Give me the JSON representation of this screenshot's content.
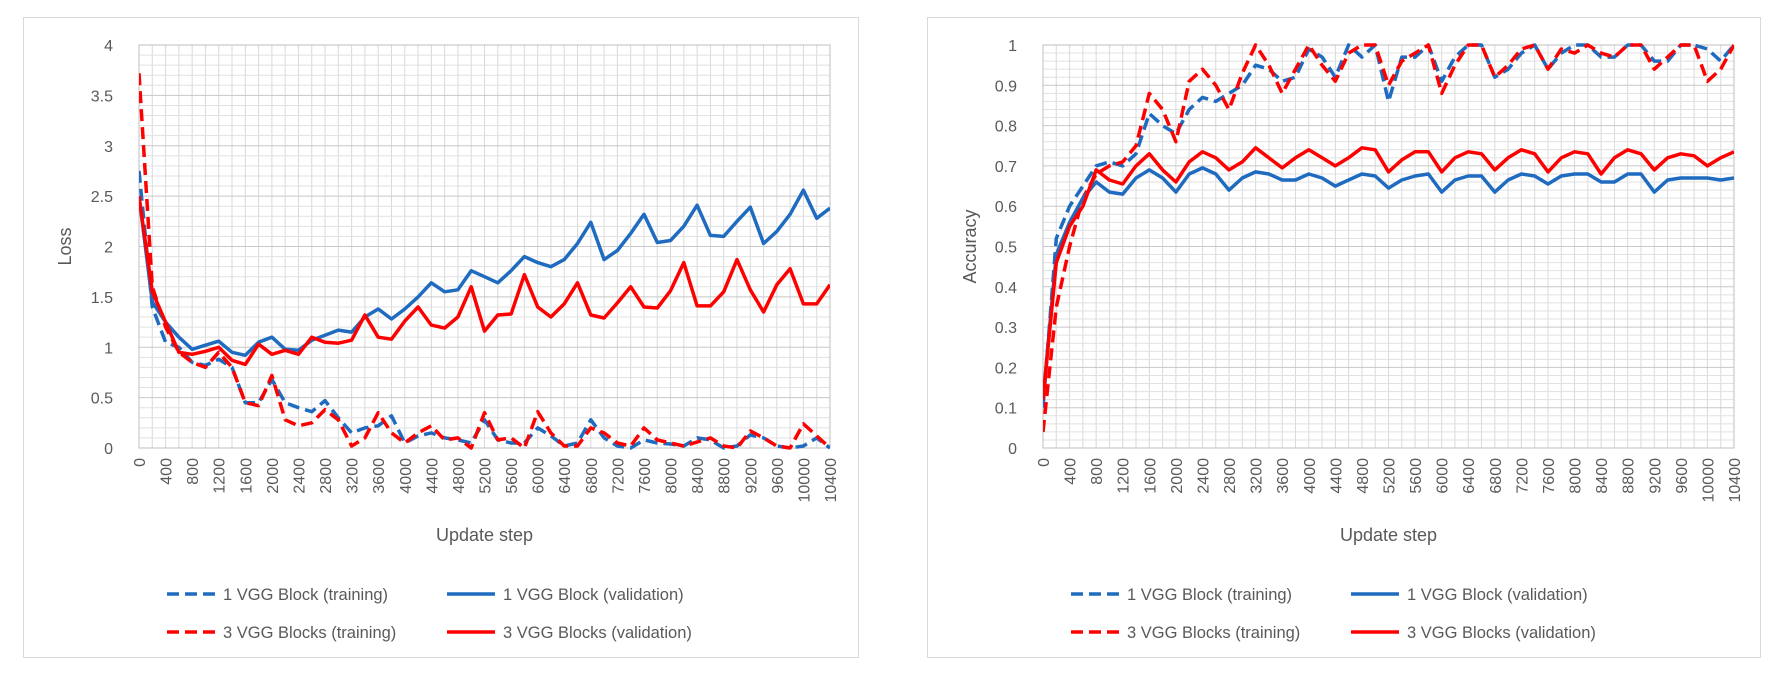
{
  "chart_data": [
    {
      "type": "line",
      "xlabel": "Update step",
      "ylabel": "Loss",
      "xticks": [
        0,
        400,
        800,
        1200,
        1600,
        2000,
        2400,
        2800,
        3200,
        3600,
        4000,
        4400,
        4800,
        5200,
        5600,
        6000,
        6400,
        6800,
        7200,
        7600,
        8000,
        8400,
        8800,
        9200,
        9600,
        10000,
        10400
      ],
      "yticks": [
        "0",
        "0.5",
        "1",
        "1.5",
        "2",
        "2.5",
        "3",
        "3.5",
        "4"
      ],
      "ylim": [
        0,
        4
      ],
      "xlim": [
        0,
        10400
      ],
      "grid": true,
      "legend_position": "bottom",
      "x": [
        0,
        200,
        400,
        600,
        800,
        1000,
        1200,
        1400,
        1600,
        1800,
        2000,
        2200,
        2400,
        2600,
        2800,
        3000,
        3200,
        3400,
        3600,
        3800,
        4000,
        4200,
        4400,
        4600,
        4800,
        5000,
        5200,
        5400,
        5600,
        5800,
        6000,
        6200,
        6400,
        6600,
        6800,
        7000,
        7200,
        7400,
        7600,
        7800,
        8000,
        8200,
        8400,
        8600,
        8800,
        9000,
        9200,
        9400,
        9600,
        9800,
        10000,
        10200,
        10400
      ],
      "series": [
        {
          "name": "1 VGG Block (training)",
          "color": "#1f6bbf",
          "dash": true,
          "values": [
            2.75,
            1.4,
            1.05,
            1.0,
            0.85,
            0.82,
            0.88,
            0.8,
            0.45,
            0.45,
            0.68,
            0.45,
            0.4,
            0.36,
            0.47,
            0.3,
            0.15,
            0.2,
            0.22,
            0.32,
            0.05,
            0.12,
            0.15,
            0.1,
            0.08,
            0.05,
            0.28,
            0.08,
            0.05,
            0.05,
            0.2,
            0.12,
            0.02,
            0.05,
            0.28,
            0.1,
            0.02,
            0.0,
            0.08,
            0.05,
            0.04,
            0.02,
            0.1,
            0.08,
            0.0,
            0.02,
            0.13,
            0.1,
            0.02,
            0.0,
            0.02,
            0.1,
            0.0
          ]
        },
        {
          "name": "1 VGG Block (validation)",
          "color": "#1f6bbf",
          "dash": false,
          "values": [
            2.5,
            1.45,
            1.25,
            1.1,
            0.98,
            1.02,
            1.06,
            0.95,
            0.92,
            1.05,
            1.1,
            0.98,
            0.97,
            1.07,
            1.12,
            1.17,
            1.15,
            1.3,
            1.38,
            1.28,
            1.38,
            1.5,
            1.64,
            1.55,
            1.57,
            1.76,
            1.7,
            1.64,
            1.76,
            1.9,
            1.84,
            1.8,
            1.87,
            2.03,
            2.24,
            1.87,
            1.96,
            2.13,
            2.32,
            2.04,
            2.06,
            2.2,
            2.41,
            2.11,
            2.1,
            2.25,
            2.39,
            2.03,
            2.15,
            2.32,
            2.56,
            2.28,
            2.38
          ]
        },
        {
          "name": "3 VGG Blocks (training)",
          "color": "#ff0000",
          "dash": true,
          "values": [
            3.72,
            1.6,
            1.2,
            0.95,
            0.85,
            0.8,
            0.95,
            0.8,
            0.45,
            0.42,
            0.72,
            0.28,
            0.22,
            0.25,
            0.38,
            0.28,
            0.02,
            0.1,
            0.35,
            0.15,
            0.05,
            0.15,
            0.22,
            0.08,
            0.1,
            0.0,
            0.35,
            0.08,
            0.1,
            0.0,
            0.36,
            0.15,
            0.02,
            0.02,
            0.2,
            0.15,
            0.05,
            0.02,
            0.2,
            0.08,
            0.05,
            0.02,
            0.06,
            0.1,
            0.02,
            0.0,
            0.17,
            0.1,
            0.02,
            0.0,
            0.24,
            0.12,
            0.0
          ]
        },
        {
          "name": "3 VGG Blocks (validation)",
          "color": "#ff0000",
          "dash": false,
          "values": [
            2.5,
            1.55,
            1.25,
            0.95,
            0.93,
            0.96,
            1.0,
            0.87,
            0.83,
            1.03,
            0.93,
            0.97,
            0.93,
            1.1,
            1.05,
            1.04,
            1.07,
            1.32,
            1.1,
            1.08,
            1.26,
            1.4,
            1.22,
            1.19,
            1.3,
            1.6,
            1.16,
            1.32,
            1.33,
            1.72,
            1.4,
            1.3,
            1.43,
            1.64,
            1.32,
            1.29,
            1.44,
            1.6,
            1.4,
            1.39,
            1.56,
            1.84,
            1.41,
            1.41,
            1.55,
            1.87,
            1.57,
            1.35,
            1.62,
            1.78,
            1.43,
            1.43,
            1.62
          ]
        }
      ]
    },
    {
      "type": "line",
      "xlabel": "Update step",
      "ylabel": "Accuracy",
      "xticks": [
        0,
        400,
        800,
        1200,
        1600,
        2000,
        2400,
        2800,
        3200,
        3600,
        4000,
        4400,
        4800,
        5200,
        5600,
        6000,
        6400,
        6800,
        7200,
        7600,
        8000,
        8400,
        8800,
        9200,
        9600,
        10000,
        10400
      ],
      "yticks": [
        "0",
        "0.1",
        "0.2",
        "0.3",
        "0.4",
        "0.5",
        "0.6",
        "0.7",
        "0.8",
        "0.9",
        "1"
      ],
      "ylim": [
        0,
        1
      ],
      "xlim": [
        0,
        10400
      ],
      "grid": true,
      "legend_position": "bottom",
      "x": [
        0,
        200,
        400,
        600,
        800,
        1000,
        1200,
        1400,
        1600,
        1800,
        2000,
        2200,
        2400,
        2600,
        2800,
        3000,
        3200,
        3400,
        3600,
        3800,
        4000,
        4200,
        4400,
        4600,
        4800,
        5000,
        5200,
        5400,
        5600,
        5800,
        6000,
        6200,
        6400,
        6600,
        6800,
        7000,
        7200,
        7400,
        7600,
        7800,
        8000,
        8200,
        8400,
        8600,
        8800,
        9000,
        9200,
        9400,
        9600,
        9800,
        10000,
        10200,
        10400
      ],
      "series": [
        {
          "name": "1 VGG Block (training)",
          "color": "#1f6bbf",
          "dash": true,
          "values": [
            0.1,
            0.52,
            0.6,
            0.65,
            0.7,
            0.71,
            0.7,
            0.73,
            0.83,
            0.8,
            0.78,
            0.84,
            0.87,
            0.86,
            0.88,
            0.9,
            0.95,
            0.94,
            0.91,
            0.92,
            0.99,
            0.97,
            0.92,
            1.0,
            0.97,
            1.0,
            0.86,
            0.97,
            0.97,
            1.0,
            0.91,
            0.97,
            1.0,
            1.0,
            0.92,
            0.94,
            0.98,
            1.0,
            0.94,
            0.98,
            1.0,
            1.0,
            0.97,
            0.97,
            1.0,
            1.0,
            0.96,
            0.96,
            1.0,
            1.0,
            0.99,
            0.96,
            1.0
          ]
        },
        {
          "name": "1 VGG Block (validation)",
          "color": "#1f6bbf",
          "dash": false,
          "values": [
            0.12,
            0.48,
            0.56,
            0.62,
            0.66,
            0.635,
            0.63,
            0.67,
            0.69,
            0.67,
            0.635,
            0.68,
            0.695,
            0.68,
            0.64,
            0.67,
            0.685,
            0.68,
            0.665,
            0.665,
            0.68,
            0.67,
            0.65,
            0.665,
            0.68,
            0.675,
            0.645,
            0.665,
            0.675,
            0.68,
            0.635,
            0.665,
            0.675,
            0.675,
            0.635,
            0.665,
            0.68,
            0.675,
            0.655,
            0.675,
            0.68,
            0.68,
            0.66,
            0.66,
            0.68,
            0.68,
            0.635,
            0.665,
            0.67,
            0.67,
            0.67,
            0.665,
            0.67
          ]
        },
        {
          "name": "3 VGG Blocks (training)",
          "color": "#ff0000",
          "dash": true,
          "values": [
            0.04,
            0.35,
            0.5,
            0.62,
            0.68,
            0.7,
            0.71,
            0.75,
            0.88,
            0.84,
            0.76,
            0.91,
            0.94,
            0.9,
            0.84,
            0.93,
            1.0,
            0.95,
            0.88,
            0.94,
            1.0,
            0.95,
            0.91,
            0.98,
            1.0,
            1.0,
            0.9,
            0.96,
            0.98,
            1.0,
            0.88,
            0.95,
            1.0,
            1.0,
            0.92,
            0.95,
            0.99,
            1.0,
            0.94,
            0.99,
            0.98,
            1.0,
            0.98,
            0.97,
            1.0,
            1.0,
            0.94,
            0.97,
            1.0,
            1.0,
            0.91,
            0.94,
            1.0
          ]
        },
        {
          "name": "3 VGG Blocks (validation)",
          "color": "#ff0000",
          "dash": false,
          "values": [
            0.12,
            0.46,
            0.55,
            0.6,
            0.69,
            0.665,
            0.655,
            0.7,
            0.73,
            0.69,
            0.66,
            0.71,
            0.735,
            0.72,
            0.69,
            0.71,
            0.745,
            0.72,
            0.695,
            0.72,
            0.74,
            0.72,
            0.7,
            0.72,
            0.745,
            0.74,
            0.685,
            0.715,
            0.735,
            0.735,
            0.685,
            0.72,
            0.735,
            0.73,
            0.69,
            0.72,
            0.74,
            0.73,
            0.685,
            0.72,
            0.735,
            0.73,
            0.68,
            0.72,
            0.74,
            0.73,
            0.69,
            0.72,
            0.73,
            0.725,
            0.7,
            0.72,
            0.735
          ]
        }
      ]
    }
  ]
}
